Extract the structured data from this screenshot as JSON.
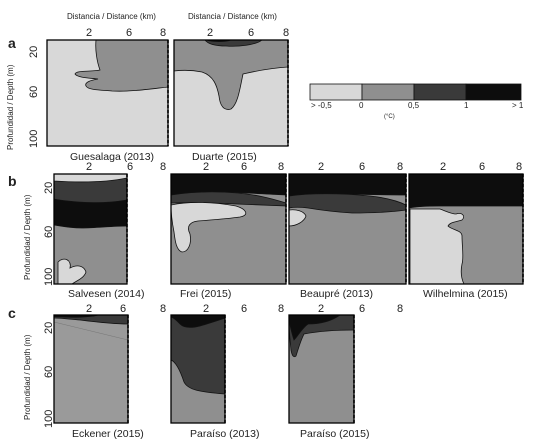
{
  "axes": {
    "distance_label": "Distancia / Distance (km)",
    "depth_label": "Profundidad / Depth (m)",
    "distance_ticks": [
      "2",
      "6",
      "8"
    ],
    "depth_ticks": [
      "20",
      "60",
      "100"
    ]
  },
  "legend": {
    "unit": "(°C)",
    "labels": [
      "> -0,5",
      "0",
      "0,5",
      "1",
      "> 1"
    ],
    "colors": [
      "#d8d8d8",
      "#8f8f8f",
      "#3a3a3a",
      "#0d0d0d"
    ]
  },
  "panels": {
    "a": {
      "letter": "a",
      "sites": [
        "Guesalaga (2013)",
        "Duarte (2015)"
      ]
    },
    "b": {
      "letter": "b",
      "sites": [
        "Salvesen (2014)",
        "Frei (2015)",
        "Beaupré (2013)",
        "Wilhelmina (2015)"
      ]
    },
    "c": {
      "letter": "c",
      "sites": [
        "Eckener (2015)",
        "Paraíso (2013)",
        "Paraíso (2015)"
      ]
    }
  }
}
